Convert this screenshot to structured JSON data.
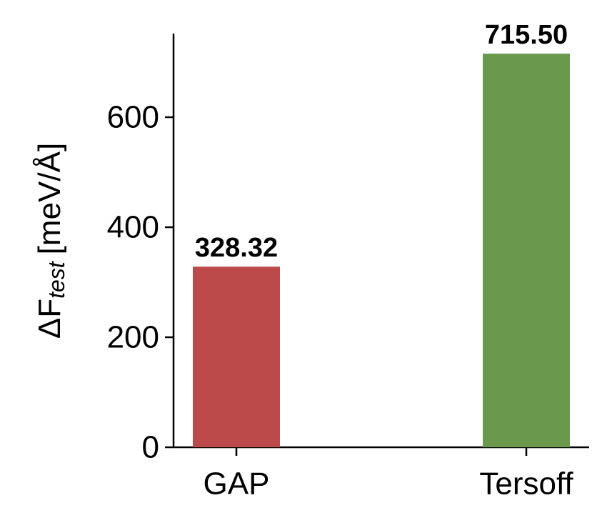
{
  "chart_data": {
    "type": "bar",
    "ylabel": "ΔF",
    "ylabel_subscript": "test",
    "ylabel_unit": "[meV/Å]",
    "categories": [
      "GAP",
      "Tersoff"
    ],
    "values": [
      328.32,
      715.5
    ],
    "value_labels": [
      "328.32",
      "715.50"
    ],
    "colors": [
      "#bc4a4a",
      "#6a994e"
    ],
    "ylim": [
      0,
      752
    ],
    "yticks": [
      0,
      200,
      400,
      600
    ],
    "grid": false
  }
}
